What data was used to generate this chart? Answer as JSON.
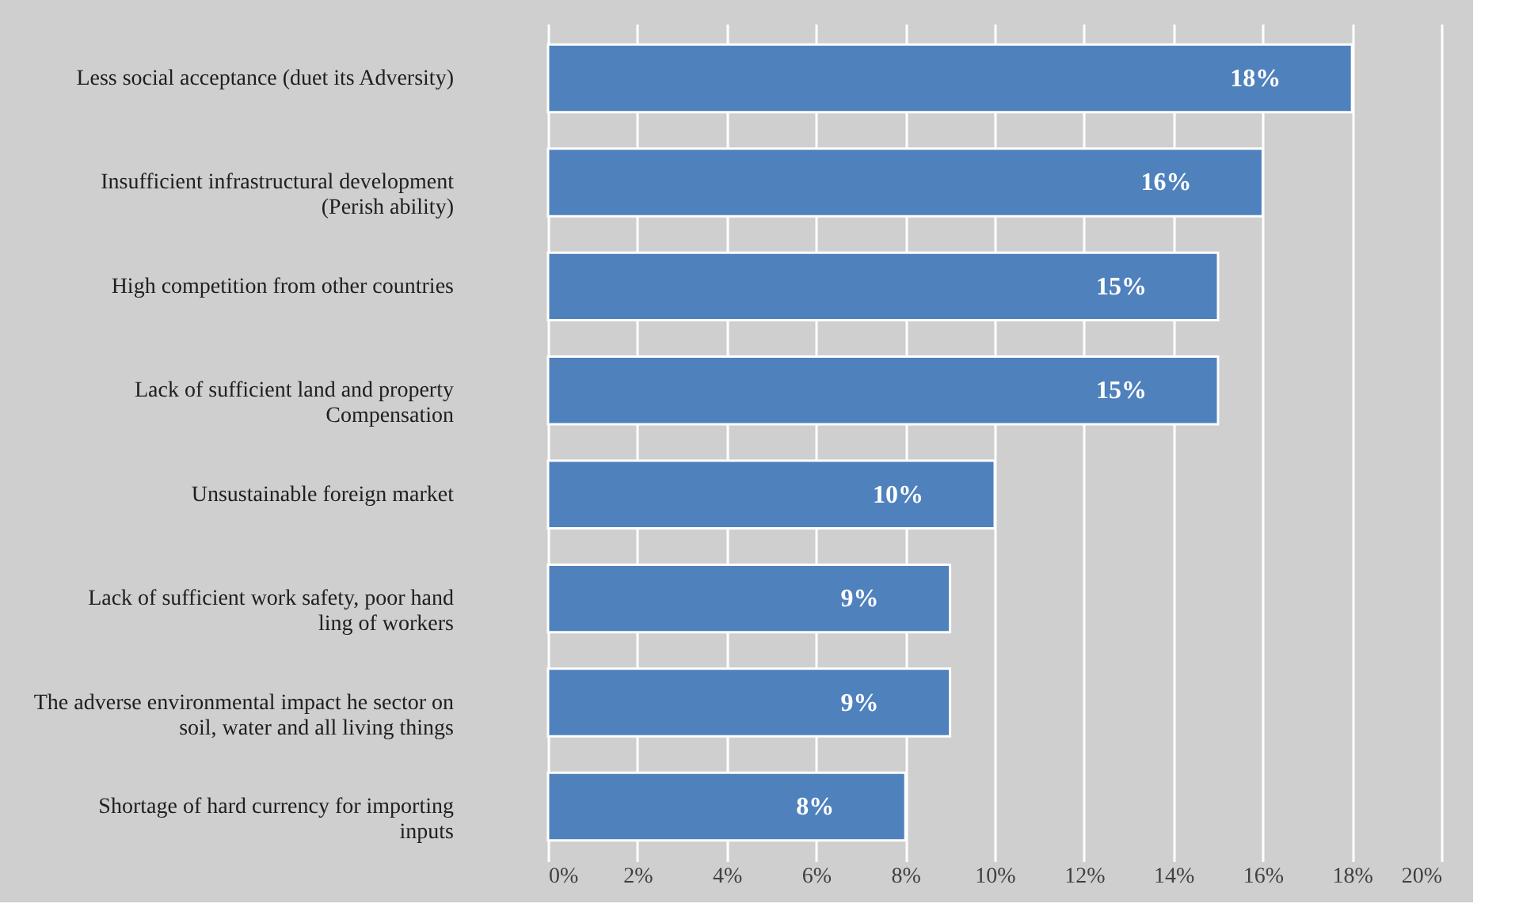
{
  "chart_data": {
    "type": "bar",
    "orientation": "horizontal",
    "categories": [
      "Less social acceptance (duet its Adversity)",
      "Insufficient infrastructural development (Perish ability)",
      "High competition from other countries",
      "Lack of sufficient land and property Compensation",
      "Unsustainable foreign market",
      "Lack of sufficient work safety, poor hand ling of workers",
      "The adverse environmental impact he sector on soil, water and all living things",
      "Shortage of hard currency for importing inputs"
    ],
    "values": [
      18,
      16,
      15,
      15,
      10,
      9,
      9,
      8
    ],
    "value_labels": [
      "18%",
      "16%",
      "15%",
      "15%",
      "10%",
      "9%",
      "9%",
      "8%"
    ],
    "color": "#4f81bd",
    "xlim": [
      0,
      20
    ],
    "xticks": [
      {
        "value": 0,
        "label": "0%"
      },
      {
        "value": 2,
        "label": "2%"
      },
      {
        "value": 4,
        "label": "4%"
      },
      {
        "value": 6,
        "label": "6%"
      },
      {
        "value": 8,
        "label": "8%"
      },
      {
        "value": 10,
        "label": "10%"
      },
      {
        "value": 12,
        "label": "12%"
      },
      {
        "value": 14,
        "label": "14%"
      },
      {
        "value": 16,
        "label": "16%"
      },
      {
        "value": 18,
        "label": "18%"
      },
      {
        "value": 20,
        "label": "20%"
      }
    ],
    "grid": "x"
  }
}
